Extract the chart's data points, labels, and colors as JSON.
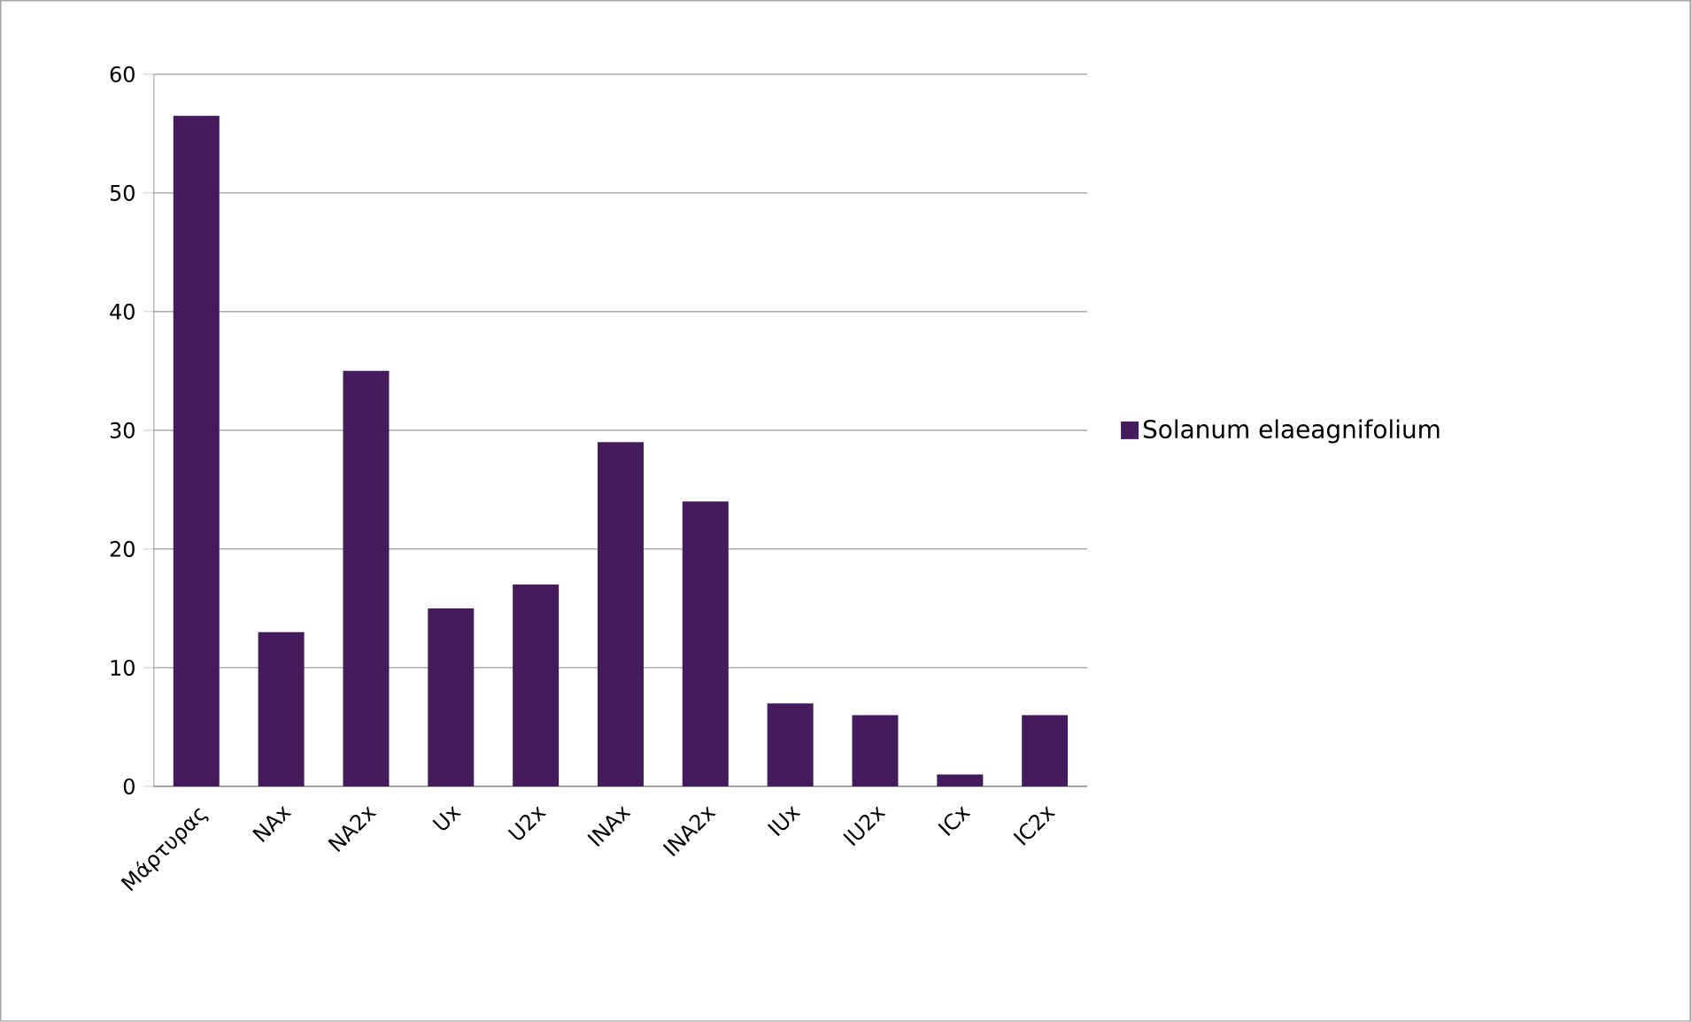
{
  "chart_data": {
    "type": "bar",
    "categories": [
      "Μάρτυρας",
      "NAx",
      "NA2x",
      "Ux",
      "U2x",
      "INAx",
      "INA2x",
      "IUx",
      "IU2x",
      "ICx",
      "IC2x"
    ],
    "series": [
      {
        "name": "Solanum elaeagnifolium",
        "color": "#441c5c",
        "values": [
          56.5,
          13,
          35,
          15,
          17,
          29,
          24,
          7,
          6,
          1,
          6
        ]
      }
    ],
    "ylim": [
      0,
      60
    ],
    "yticks": [
      0,
      10,
      20,
      30,
      40,
      50,
      60
    ],
    "grid": "y",
    "legend": "right"
  }
}
